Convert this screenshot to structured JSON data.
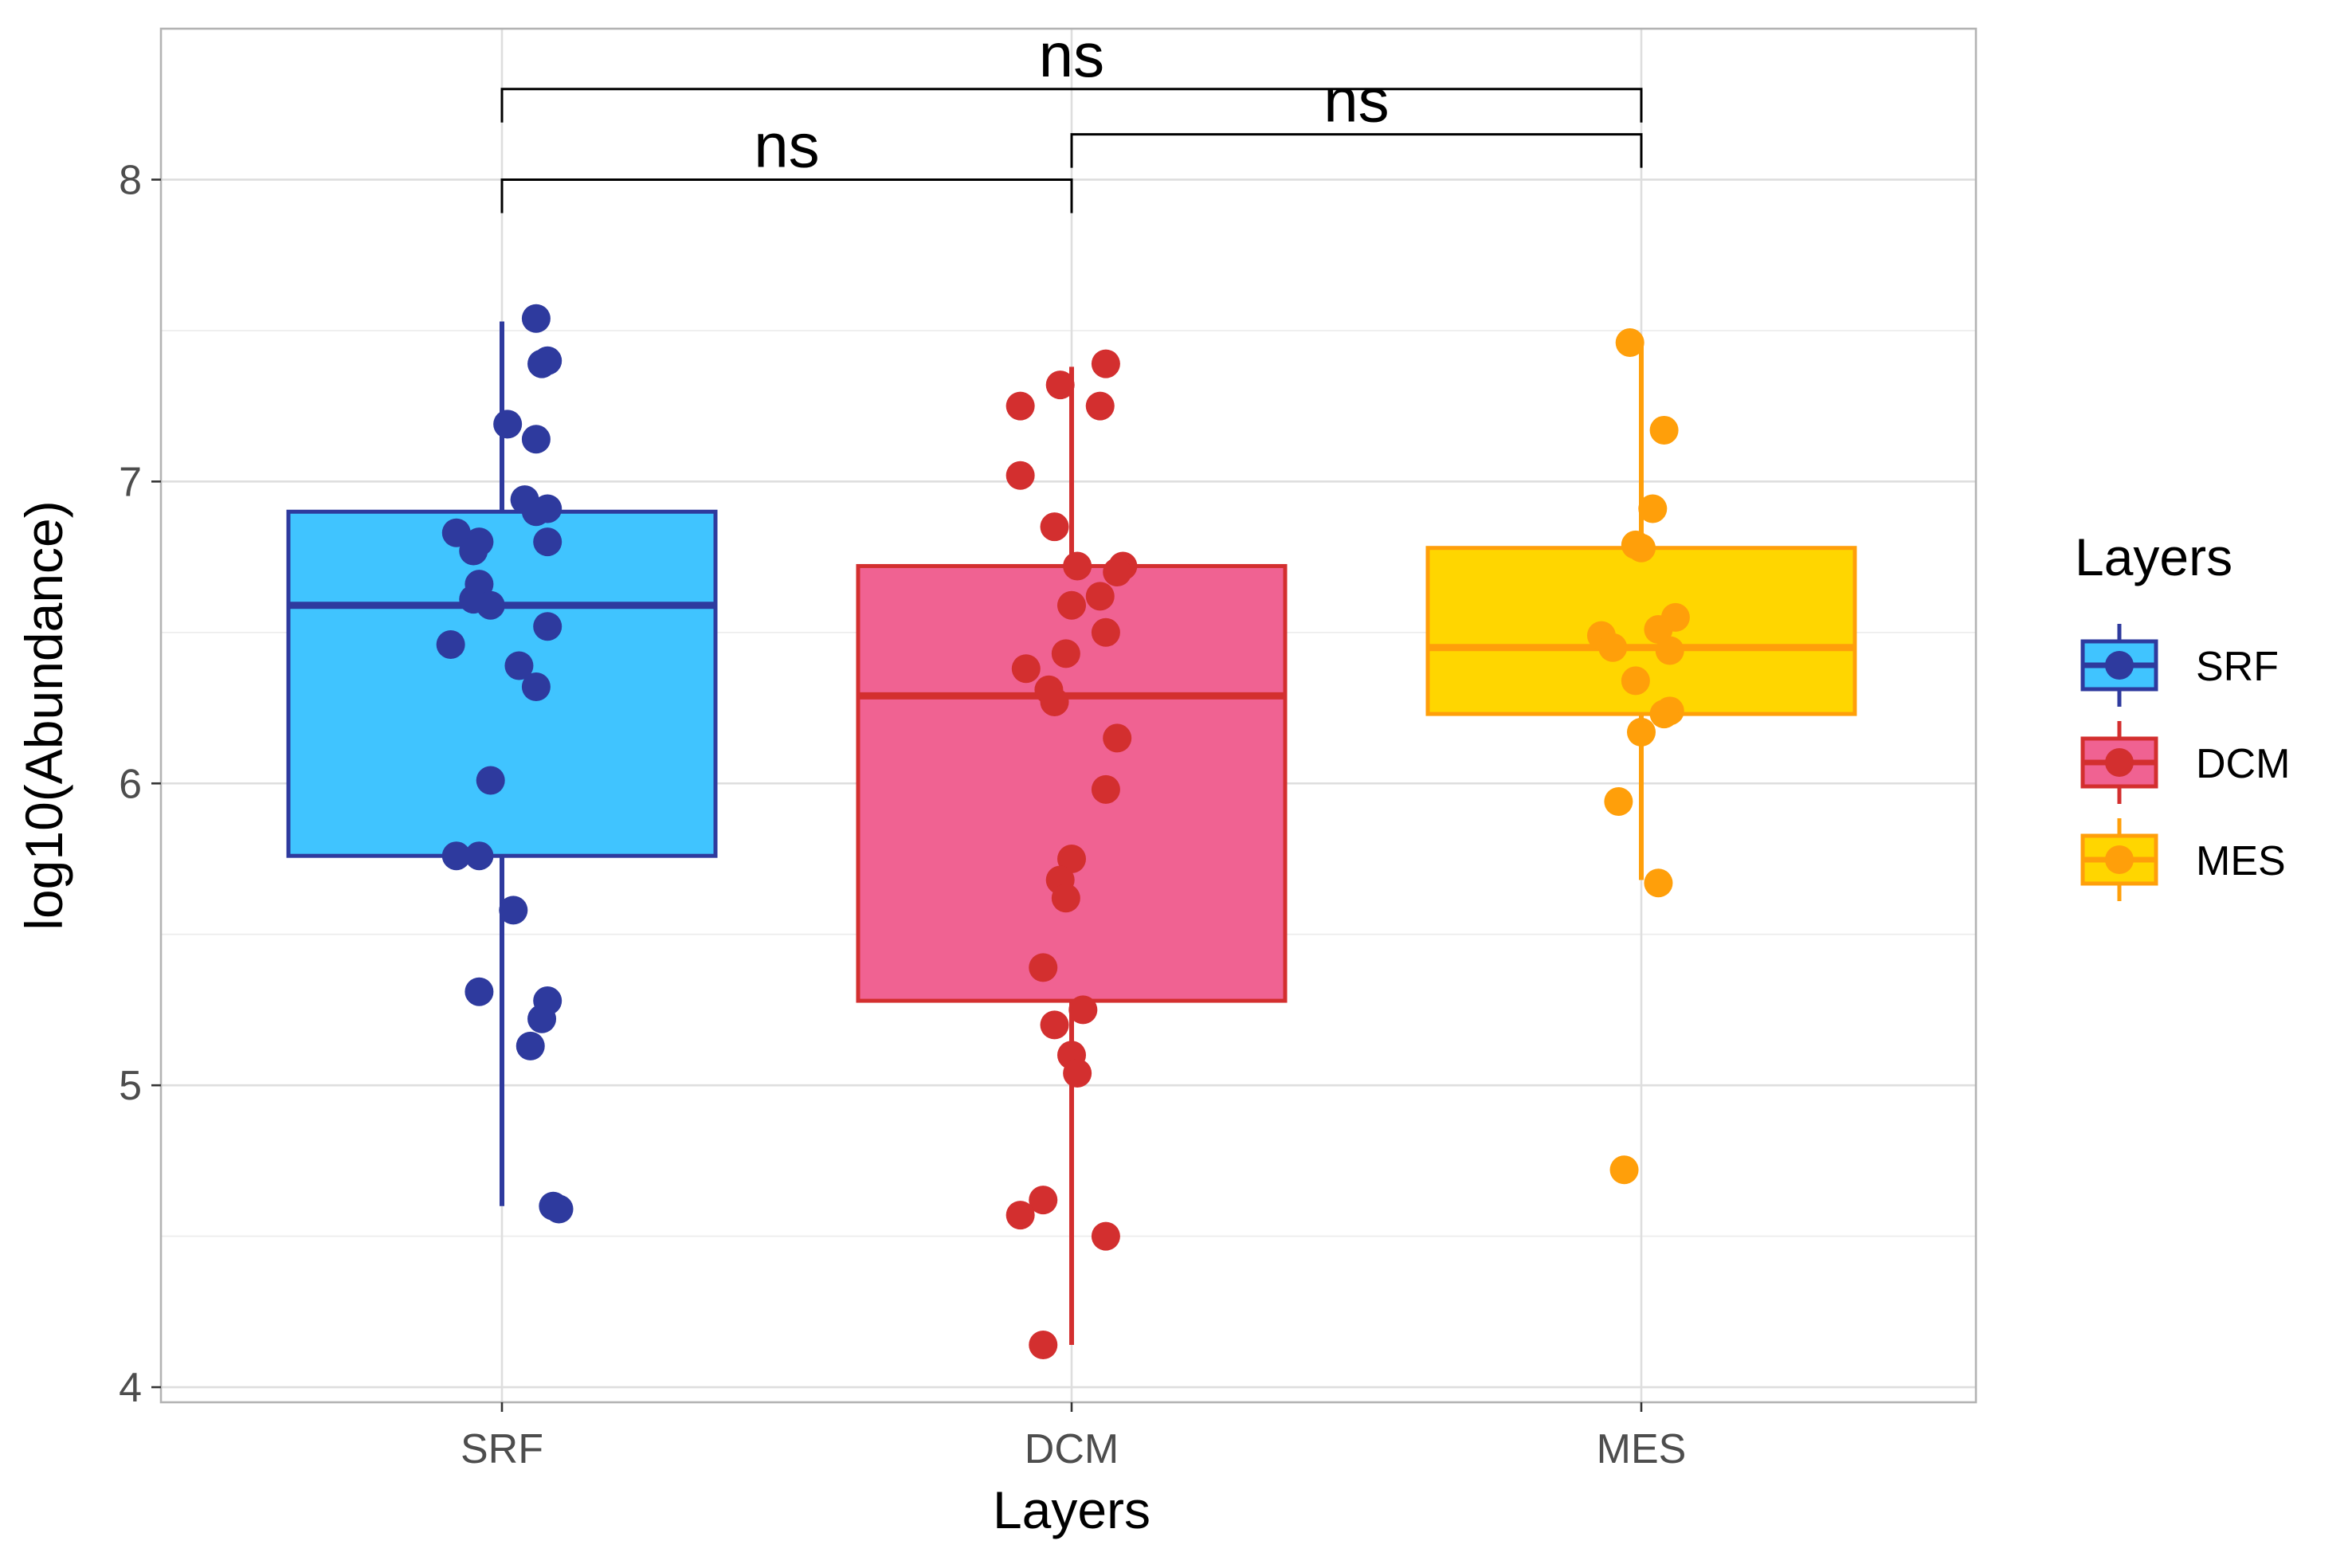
{
  "chart_data": {
    "type": "boxplot",
    "xlabel": "Layers",
    "ylabel": "log10(Abundance)",
    "ylim": [
      3.95,
      8.5
    ],
    "y_ticks": [
      4,
      5,
      6,
      7,
      8
    ],
    "categories": [
      "SRF",
      "DCM",
      "MES"
    ],
    "legend": {
      "title": "Layers",
      "placement": "right",
      "entries": [
        "SRF",
        "DCM",
        "MES"
      ]
    },
    "series": [
      {
        "name": "SRF",
        "fill": "#40C4FF",
        "line": "#2E3A9E",
        "box": {
          "min": 4.6,
          "q1": 5.76,
          "median": 6.59,
          "q3": 6.9,
          "max": 7.53
        },
        "points": [
          {
            "dx": 0.06,
            "y": 7.54
          },
          {
            "dx": 0.08,
            "y": 7.4
          },
          {
            "dx": 0.07,
            "y": 7.39
          },
          {
            "dx": 0.01,
            "y": 7.19
          },
          {
            "dx": 0.06,
            "y": 7.14
          },
          {
            "dx": 0.04,
            "y": 6.94
          },
          {
            "dx": 0.08,
            "y": 6.91
          },
          {
            "dx": 0.06,
            "y": 6.9
          },
          {
            "dx": -0.08,
            "y": 6.83
          },
          {
            "dx": -0.04,
            "y": 6.8
          },
          {
            "dx": -0.05,
            "y": 6.77
          },
          {
            "dx": 0.08,
            "y": 6.8
          },
          {
            "dx": -0.04,
            "y": 6.66
          },
          {
            "dx": -0.05,
            "y": 6.61
          },
          {
            "dx": -0.02,
            "y": 6.59
          },
          {
            "dx": 0.08,
            "y": 6.52
          },
          {
            "dx": -0.09,
            "y": 6.46
          },
          {
            "dx": 0.03,
            "y": 6.39
          },
          {
            "dx": 0.06,
            "y": 6.32
          },
          {
            "dx": -0.02,
            "y": 6.01
          },
          {
            "dx": -0.08,
            "y": 5.76
          },
          {
            "dx": -0.04,
            "y": 5.76
          },
          {
            "dx": 0.02,
            "y": 5.58
          },
          {
            "dx": -0.04,
            "y": 5.31
          },
          {
            "dx": 0.08,
            "y": 5.28
          },
          {
            "dx": 0.07,
            "y": 5.22
          },
          {
            "dx": 0.05,
            "y": 5.13
          },
          {
            "dx": 0.09,
            "y": 4.6
          },
          {
            "dx": 0.1,
            "y": 4.59
          }
        ]
      },
      {
        "name": "DCM",
        "fill": "#F06292",
        "line": "#D32F2F",
        "box": {
          "min": 4.14,
          "q1": 5.28,
          "median": 6.29,
          "q3": 6.72,
          "max": 7.38
        },
        "points": [
          {
            "dx": 0.06,
            "y": 7.39
          },
          {
            "dx": -0.02,
            "y": 7.32
          },
          {
            "dx": -0.09,
            "y": 7.25
          },
          {
            "dx": 0.05,
            "y": 7.25
          },
          {
            "dx": -0.09,
            "y": 7.02
          },
          {
            "dx": -0.03,
            "y": 6.85
          },
          {
            "dx": 0.09,
            "y": 6.72
          },
          {
            "dx": 0.01,
            "y": 6.72
          },
          {
            "dx": 0.08,
            "y": 6.7
          },
          {
            "dx": 0.05,
            "y": 6.62
          },
          {
            "dx": 0.0,
            "y": 6.59
          },
          {
            "dx": 0.06,
            "y": 6.5
          },
          {
            "dx": -0.01,
            "y": 6.43
          },
          {
            "dx": -0.08,
            "y": 6.38
          },
          {
            "dx": -0.04,
            "y": 6.31
          },
          {
            "dx": -0.03,
            "y": 6.27
          },
          {
            "dx": 0.08,
            "y": 6.15
          },
          {
            "dx": 0.06,
            "y": 5.98
          },
          {
            "dx": 0.0,
            "y": 5.75
          },
          {
            "dx": -0.02,
            "y": 5.68
          },
          {
            "dx": -0.01,
            "y": 5.62
          },
          {
            "dx": -0.05,
            "y": 5.39
          },
          {
            "dx": 0.02,
            "y": 5.25
          },
          {
            "dx": -0.03,
            "y": 5.2
          },
          {
            "dx": 0.0,
            "y": 5.1
          },
          {
            "dx": 0.01,
            "y": 5.04
          },
          {
            "dx": -0.05,
            "y": 4.62
          },
          {
            "dx": -0.09,
            "y": 4.57
          },
          {
            "dx": 0.06,
            "y": 4.5
          },
          {
            "dx": -0.05,
            "y": 4.14
          }
        ]
      },
      {
        "name": "MES",
        "fill": "#FFD600",
        "line": "#FF9F0A",
        "box": {
          "min": 5.68,
          "q1": 6.23,
          "median": 6.45,
          "q3": 6.78,
          "max": 7.46
        },
        "points": [
          {
            "dx": -0.02,
            "y": 7.46
          },
          {
            "dx": 0.04,
            "y": 7.17
          },
          {
            "dx": 0.02,
            "y": 6.91
          },
          {
            "dx": -0.01,
            "y": 6.79
          },
          {
            "dx": 0.0,
            "y": 6.78
          },
          {
            "dx": 0.06,
            "y": 6.55
          },
          {
            "dx": 0.03,
            "y": 6.51
          },
          {
            "dx": -0.07,
            "y": 6.49
          },
          {
            "dx": -0.05,
            "y": 6.45
          },
          {
            "dx": 0.05,
            "y": 6.44
          },
          {
            "dx": -0.01,
            "y": 6.34
          },
          {
            "dx": 0.05,
            "y": 6.24
          },
          {
            "dx": 0.04,
            "y": 6.23
          },
          {
            "dx": 0.0,
            "y": 6.17
          },
          {
            "dx": -0.04,
            "y": 5.94
          },
          {
            "dx": 0.03,
            "y": 5.67
          },
          {
            "dx": -0.03,
            "y": 4.72
          }
        ]
      }
    ],
    "comparisons": [
      {
        "from": "SRF",
        "to": "DCM",
        "label": "ns",
        "level": 0
      },
      {
        "from": "DCM",
        "to": "MES",
        "label": "ns",
        "level": 1
      },
      {
        "from": "SRF",
        "to": "MES",
        "label": "ns",
        "level": 2
      }
    ],
    "grid": true
  }
}
